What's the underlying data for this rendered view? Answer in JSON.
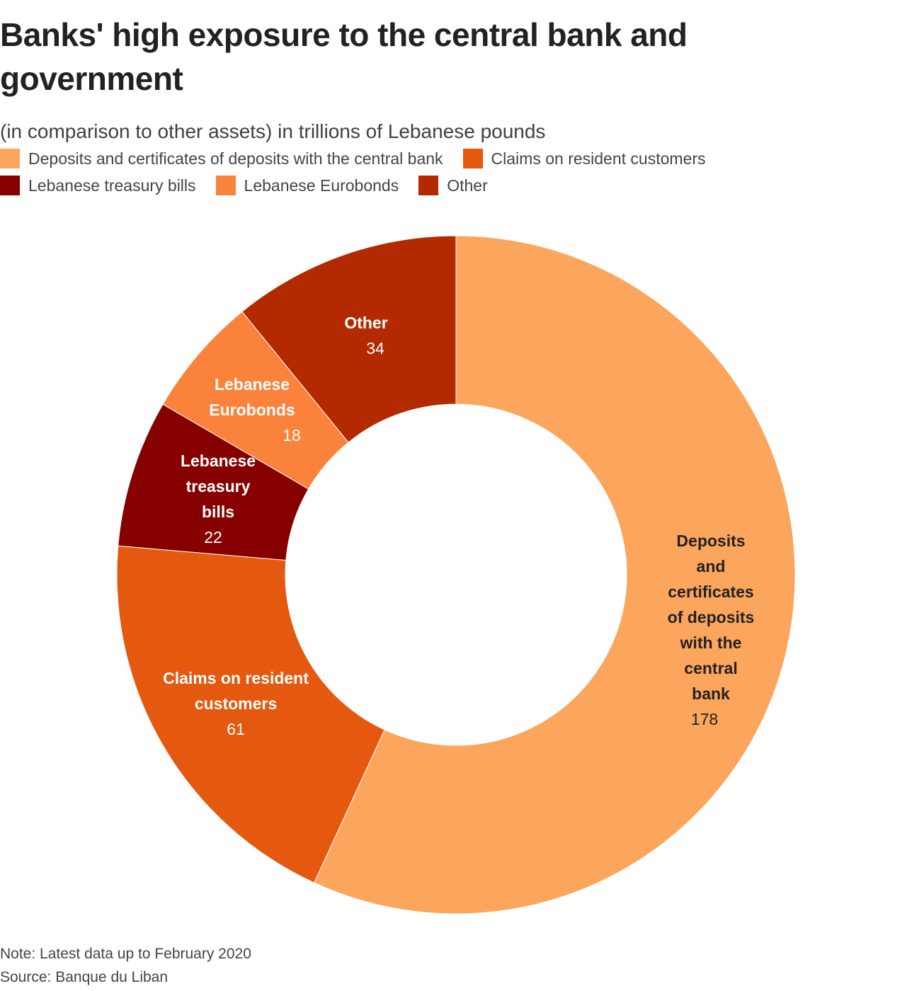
{
  "title": "Banks' high exposure to the central bank and government",
  "subtitle": "(in comparison to other assets) in trillions of Lebanese pounds",
  "note": "Note: Latest data up to February 2020",
  "source": "Source: Banque du Liban",
  "chart_data": {
    "type": "pie",
    "variant": "donut",
    "title": "Banks' high exposure to the central bank and government",
    "subtitle": "(in comparison to other assets) in trillions of Lebanese pounds",
    "units": "trillions of Lebanese pounds",
    "start": "12 o'clock, clockwise",
    "legend_position": "top-left",
    "categories": [
      "Deposits and certificates of deposits with the central bank",
      "Claims on resident customers",
      "Lebanese treasury bills",
      "Lebanese Eurobonds",
      "Other"
    ],
    "values": [
      178,
      61,
      22,
      18,
      34
    ],
    "colors": [
      "#fca55d",
      "#e4580f",
      "#870000",
      "#fb823b",
      "#b42a00"
    ],
    "slice_labels": [
      {
        "lines": [
          "Deposits",
          "and",
          "certificates",
          "of deposits",
          "with the",
          "central",
          "bank"
        ],
        "value": "178",
        "text_color": "#222222"
      },
      {
        "lines": [
          "Claims on resident",
          "customers"
        ],
        "value": "61",
        "text_color": "#ffffff"
      },
      {
        "lines": [
          "Lebanese",
          "treasury",
          "bills"
        ],
        "value": "22",
        "text_color": "#ffffff"
      },
      {
        "lines": [
          "Lebanese",
          "Eurobonds"
        ],
        "value": "18",
        "text_color": "#ffffff"
      },
      {
        "lines": [
          "Other"
        ],
        "value": "34",
        "text_color": "#ffffff"
      }
    ]
  },
  "legend": {
    "rows": [
      [
        {
          "label": "Deposits and certificates of deposits with the central bank",
          "color": "#fca55d"
        },
        {
          "label": "Claims on resident customers",
          "color": "#e4580f"
        }
      ],
      [
        {
          "label": "Lebanese treasury bills",
          "color": "#870000"
        },
        {
          "label": "Lebanese Eurobonds",
          "color": "#fb823b"
        },
        {
          "label": "Other",
          "color": "#b42a00"
        }
      ]
    ]
  }
}
